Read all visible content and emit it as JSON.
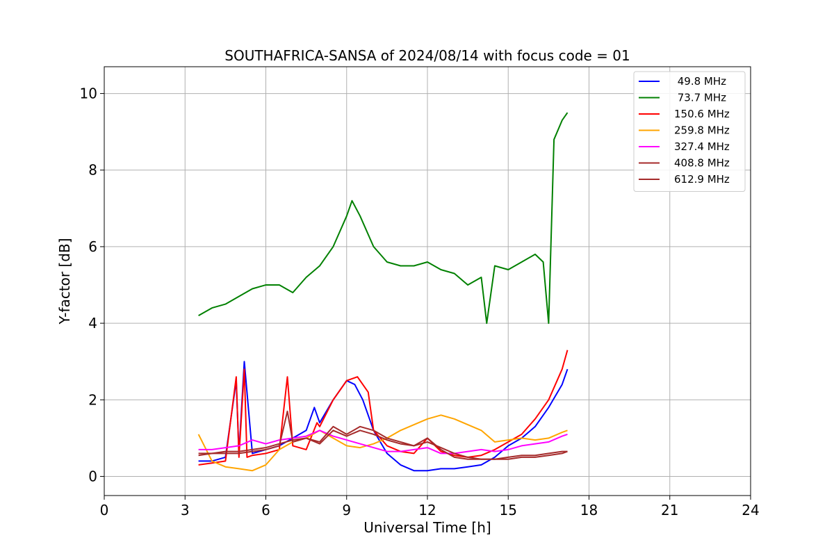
{
  "chart_data": {
    "type": "line",
    "title": "SOUTHAFRICA-SANSA of 2024/08/14 with focus code = 01",
    "xlabel": "Universal Time [h]",
    "ylabel": "Y-factor [dB]",
    "xlim": [
      0,
      24
    ],
    "ylim": [
      -0.5,
      10.7
    ],
    "xticks": [
      0,
      3,
      6,
      9,
      12,
      15,
      18,
      21,
      24
    ],
    "yticks": [
      0,
      2,
      4,
      6,
      8,
      10
    ],
    "grid": true,
    "legend_position": "top-right",
    "series": [
      {
        "name": " 49.8 MHz",
        "color": "#0000ff",
        "x": [
          3.5,
          4.0,
          4.5,
          4.9,
          5.0,
          5.2,
          5.5,
          6.0,
          6.5,
          7.0,
          7.5,
          7.8,
          8.0,
          8.5,
          9.0,
          9.3,
          9.6,
          10.0,
          10.5,
          11.0,
          11.5,
          12.0,
          12.5,
          13.0,
          13.5,
          14.0,
          14.5,
          15.0,
          15.5,
          16.0,
          16.5,
          17.0,
          17.2
        ],
        "y": [
          0.4,
          0.4,
          0.5,
          2.5,
          0.6,
          3.0,
          0.6,
          0.7,
          0.8,
          1.0,
          1.2,
          1.8,
          1.4,
          2.0,
          2.5,
          2.4,
          2.0,
          1.2,
          0.6,
          0.3,
          0.15,
          0.15,
          0.2,
          0.2,
          0.25,
          0.3,
          0.5,
          0.8,
          1.0,
          1.3,
          1.8,
          2.4,
          2.8
        ]
      },
      {
        "name": " 73.7 MHz",
        "color": "#008000",
        "x": [
          3.5,
          4.0,
          4.5,
          5.0,
          5.5,
          6.0,
          6.5,
          7.0,
          7.5,
          8.0,
          8.5,
          9.0,
          9.2,
          9.5,
          10.0,
          10.5,
          11.0,
          11.5,
          12.0,
          12.5,
          13.0,
          13.5,
          14.0,
          14.2,
          14.5,
          15.0,
          15.5,
          16.0,
          16.3,
          16.5,
          16.7,
          17.0,
          17.2
        ],
        "y": [
          4.2,
          4.4,
          4.5,
          4.7,
          4.9,
          5.0,
          5.0,
          4.8,
          5.2,
          5.5,
          6.0,
          6.8,
          7.2,
          6.8,
          6.0,
          5.6,
          5.5,
          5.5,
          5.6,
          5.4,
          5.3,
          5.0,
          5.2,
          4.0,
          5.5,
          5.4,
          5.6,
          5.8,
          5.6,
          4.0,
          8.8,
          9.3,
          9.5
        ]
      },
      {
        "name": "150.6 MHz",
        "color": "#ff0000",
        "x": [
          3.5,
          4.0,
          4.5,
          4.9,
          5.0,
          5.2,
          5.3,
          5.5,
          6.0,
          6.5,
          6.8,
          7.0,
          7.5,
          7.9,
          8.0,
          8.5,
          9.0,
          9.4,
          9.8,
          10.0,
          10.5,
          11.0,
          11.5,
          12.0,
          12.5,
          13.0,
          13.5,
          14.0,
          14.5,
          15.0,
          15.5,
          16.0,
          16.5,
          17.0,
          17.2
        ],
        "y": [
          0.3,
          0.35,
          0.4,
          2.6,
          0.5,
          2.8,
          0.5,
          0.55,
          0.6,
          0.7,
          2.6,
          0.8,
          0.7,
          1.4,
          1.3,
          2.0,
          2.5,
          2.6,
          2.2,
          1.2,
          0.8,
          0.65,
          0.6,
          1.0,
          0.65,
          0.55,
          0.5,
          0.55,
          0.7,
          0.9,
          1.1,
          1.5,
          2.0,
          2.8,
          3.3
        ]
      },
      {
        "name": "259.8 MHz",
        "color": "#ffa500",
        "x": [
          3.5,
          4.0,
          4.5,
          5.0,
          5.5,
          6.0,
          6.5,
          7.0,
          7.5,
          8.0,
          8.5,
          9.0,
          9.5,
          10.0,
          10.5,
          11.0,
          11.5,
          12.0,
          12.5,
          13.0,
          13.5,
          14.0,
          14.5,
          15.0,
          15.5,
          16.0,
          16.5,
          17.0,
          17.2
        ],
        "y": [
          1.1,
          0.4,
          0.25,
          0.2,
          0.15,
          0.3,
          0.7,
          0.9,
          1.0,
          1.2,
          1.0,
          0.8,
          0.75,
          0.85,
          1.0,
          1.2,
          1.35,
          1.5,
          1.6,
          1.5,
          1.35,
          1.2,
          0.9,
          0.95,
          1.0,
          0.95,
          1.0,
          1.15,
          1.2
        ]
      },
      {
        "name": "327.4 MHz",
        "color": "#ff00ff",
        "x": [
          3.5,
          4.0,
          4.5,
          5.0,
          5.5,
          6.0,
          6.5,
          7.0,
          7.5,
          8.0,
          8.5,
          9.0,
          9.5,
          10.0,
          10.5,
          11.0,
          11.5,
          12.0,
          12.5,
          13.0,
          13.5,
          14.0,
          14.5,
          15.0,
          15.5,
          16.0,
          16.5,
          17.0,
          17.2
        ],
        "y": [
          0.7,
          0.7,
          0.75,
          0.8,
          0.95,
          0.85,
          0.95,
          1.0,
          1.05,
          1.2,
          1.05,
          0.95,
          0.85,
          0.75,
          0.65,
          0.65,
          0.7,
          0.75,
          0.6,
          0.6,
          0.65,
          0.7,
          0.65,
          0.7,
          0.8,
          0.85,
          0.9,
          1.05,
          1.1
        ]
      },
      {
        "name": "408.8 MHz",
        "color": "#a52a2a",
        "x": [
          3.5,
          4.0,
          4.5,
          5.0,
          5.5,
          6.0,
          6.5,
          6.8,
          7.0,
          7.5,
          8.0,
          8.5,
          9.0,
          9.5,
          10.0,
          10.5,
          11.0,
          11.5,
          12.0,
          12.5,
          13.0,
          13.5,
          14.0,
          14.5,
          15.0,
          15.5,
          16.0,
          16.5,
          17.0,
          17.2
        ],
        "y": [
          0.55,
          0.6,
          0.6,
          0.6,
          0.65,
          0.7,
          0.8,
          1.7,
          0.9,
          1.0,
          0.9,
          1.3,
          1.1,
          1.3,
          1.2,
          1.0,
          0.9,
          0.8,
          1.0,
          0.7,
          0.5,
          0.45,
          0.45,
          0.45,
          0.5,
          0.55,
          0.55,
          0.6,
          0.65,
          0.65
        ]
      },
      {
        "name": "612.9 MHz",
        "color": "#a52a2a",
        "x": [
          3.5,
          4.0,
          4.5,
          5.0,
          5.5,
          6.0,
          6.5,
          7.0,
          7.5,
          8.0,
          8.5,
          9.0,
          9.5,
          10.0,
          10.5,
          11.0,
          11.5,
          12.0,
          12.5,
          13.0,
          13.5,
          14.0,
          14.5,
          15.0,
          15.5,
          16.0,
          16.5,
          17.0,
          17.2
        ],
        "y": [
          0.6,
          0.6,
          0.65,
          0.65,
          0.7,
          0.75,
          0.85,
          0.95,
          1.0,
          0.85,
          1.2,
          1.05,
          1.2,
          1.1,
          0.95,
          0.85,
          0.8,
          0.9,
          0.75,
          0.6,
          0.5,
          0.45,
          0.45,
          0.45,
          0.5,
          0.5,
          0.55,
          0.6,
          0.65
        ]
      }
    ]
  }
}
